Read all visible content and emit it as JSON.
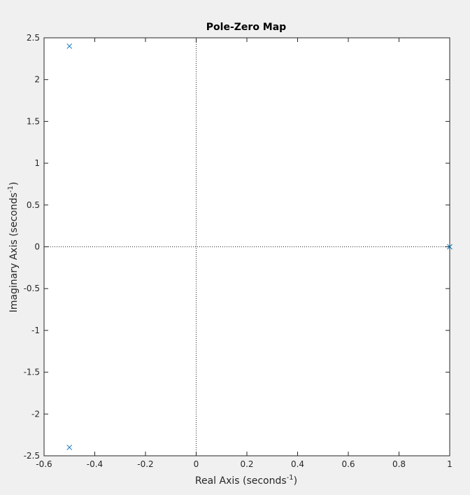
{
  "chart_data": {
    "type": "scatter",
    "title": "Pole-Zero Map",
    "xlabel": "Real Axis (seconds",
    "ylabel": "Imaginary Axis (seconds",
    "axis_unit_exponent": "-1",
    "axis_label_suffix": ")",
    "xlim": [
      -0.6,
      1.0
    ],
    "ylim": [
      -2.5,
      2.5
    ],
    "xticks": [
      -0.6,
      -0.4,
      -0.2,
      0,
      0.2,
      0.4,
      0.6,
      0.8,
      1
    ],
    "xtick_labels": [
      "-0.6",
      "-0.4",
      "-0.2",
      "0",
      "0.2",
      "0.4",
      "0.6",
      "0.8",
      "1"
    ],
    "yticks": [
      -2.5,
      -2,
      -1.5,
      -1,
      -0.5,
      0,
      0.5,
      1,
      1.5,
      2,
      2.5
    ],
    "ytick_labels": [
      "-2.5",
      "-2",
      "-1.5",
      "-1",
      "-0.5",
      "0",
      "0.5",
      "1",
      "1.5",
      "2",
      "2.5"
    ],
    "grid": false,
    "reference_lines": {
      "x": 0,
      "y": 0,
      "style": "dotted"
    },
    "marker": "x",
    "marker_color": "#0072bd",
    "poles": [
      {
        "x": -0.5,
        "y": 2.4
      },
      {
        "x": -0.5,
        "y": -2.4
      },
      {
        "x": 1.0,
        "y": 0.0
      }
    ],
    "zeros": []
  }
}
